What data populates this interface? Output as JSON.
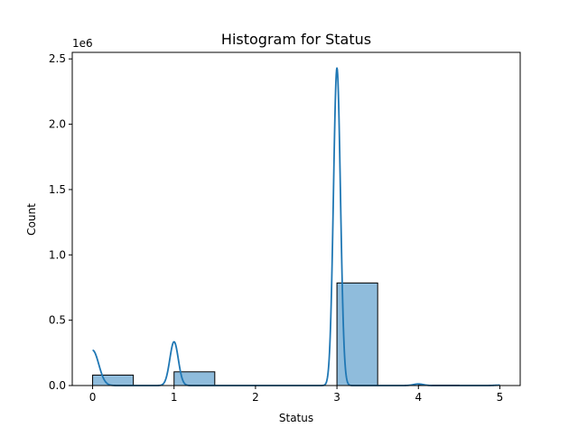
{
  "chart_data": {
    "type": "bar",
    "title": "Histogram for Status",
    "xlabel": "Status",
    "ylabel": "Count",
    "y_offset_label": "1e6",
    "xlim": [
      -0.25,
      5.25
    ],
    "ylim": [
      0,
      2.55
    ],
    "x_ticks": [
      0,
      1,
      2,
      3,
      4,
      5
    ],
    "x_tick_labels": [
      "0",
      "1",
      "2",
      "3",
      "4",
      "5"
    ],
    "y_ticks": [
      0,
      0.5,
      1.0,
      1.5,
      2.0,
      2.5
    ],
    "y_tick_labels": [
      "0.0",
      "0.5",
      "1.0",
      "1.5",
      "2.0",
      "2.5"
    ],
    "bins": [
      {
        "x0": 0.0,
        "x1": 0.5,
        "value": 0.08
      },
      {
        "x0": 0.5,
        "x1": 1.0,
        "value": 0.0
      },
      {
        "x0": 1.0,
        "x1": 1.5,
        "value": 0.105
      },
      {
        "x0": 1.5,
        "x1": 2.0,
        "value": 0.0
      },
      {
        "x0": 2.0,
        "x1": 2.5,
        "value": 0.0
      },
      {
        "x0": 2.5,
        "x1": 3.0,
        "value": 0.0
      },
      {
        "x0": 3.0,
        "x1": 3.5,
        "value": 0.785
      },
      {
        "x0": 3.5,
        "x1": 4.0,
        "value": 0.0
      },
      {
        "x0": 4.0,
        "x1": 4.5,
        "value": 0.003
      },
      {
        "x0": 4.5,
        "x1": 5.0,
        "value": 0.0005
      }
    ],
    "kde": {
      "color": "#1f77b4",
      "peaks": [
        {
          "center": 0.0,
          "height": 0.27,
          "sigma": 0.075
        },
        {
          "center": 1.0,
          "height": 0.335,
          "sigma": 0.052
        },
        {
          "center": 3.0,
          "height": 2.43,
          "sigma": 0.043
        },
        {
          "center": 4.0,
          "height": 0.012,
          "sigma": 0.06
        },
        {
          "center": 5.0,
          "height": 0.003,
          "sigma": 0.06
        }
      ]
    },
    "bar_fill": "#8fbcdc",
    "bar_edge": "#000000",
    "grid": false,
    "legend": "none"
  }
}
